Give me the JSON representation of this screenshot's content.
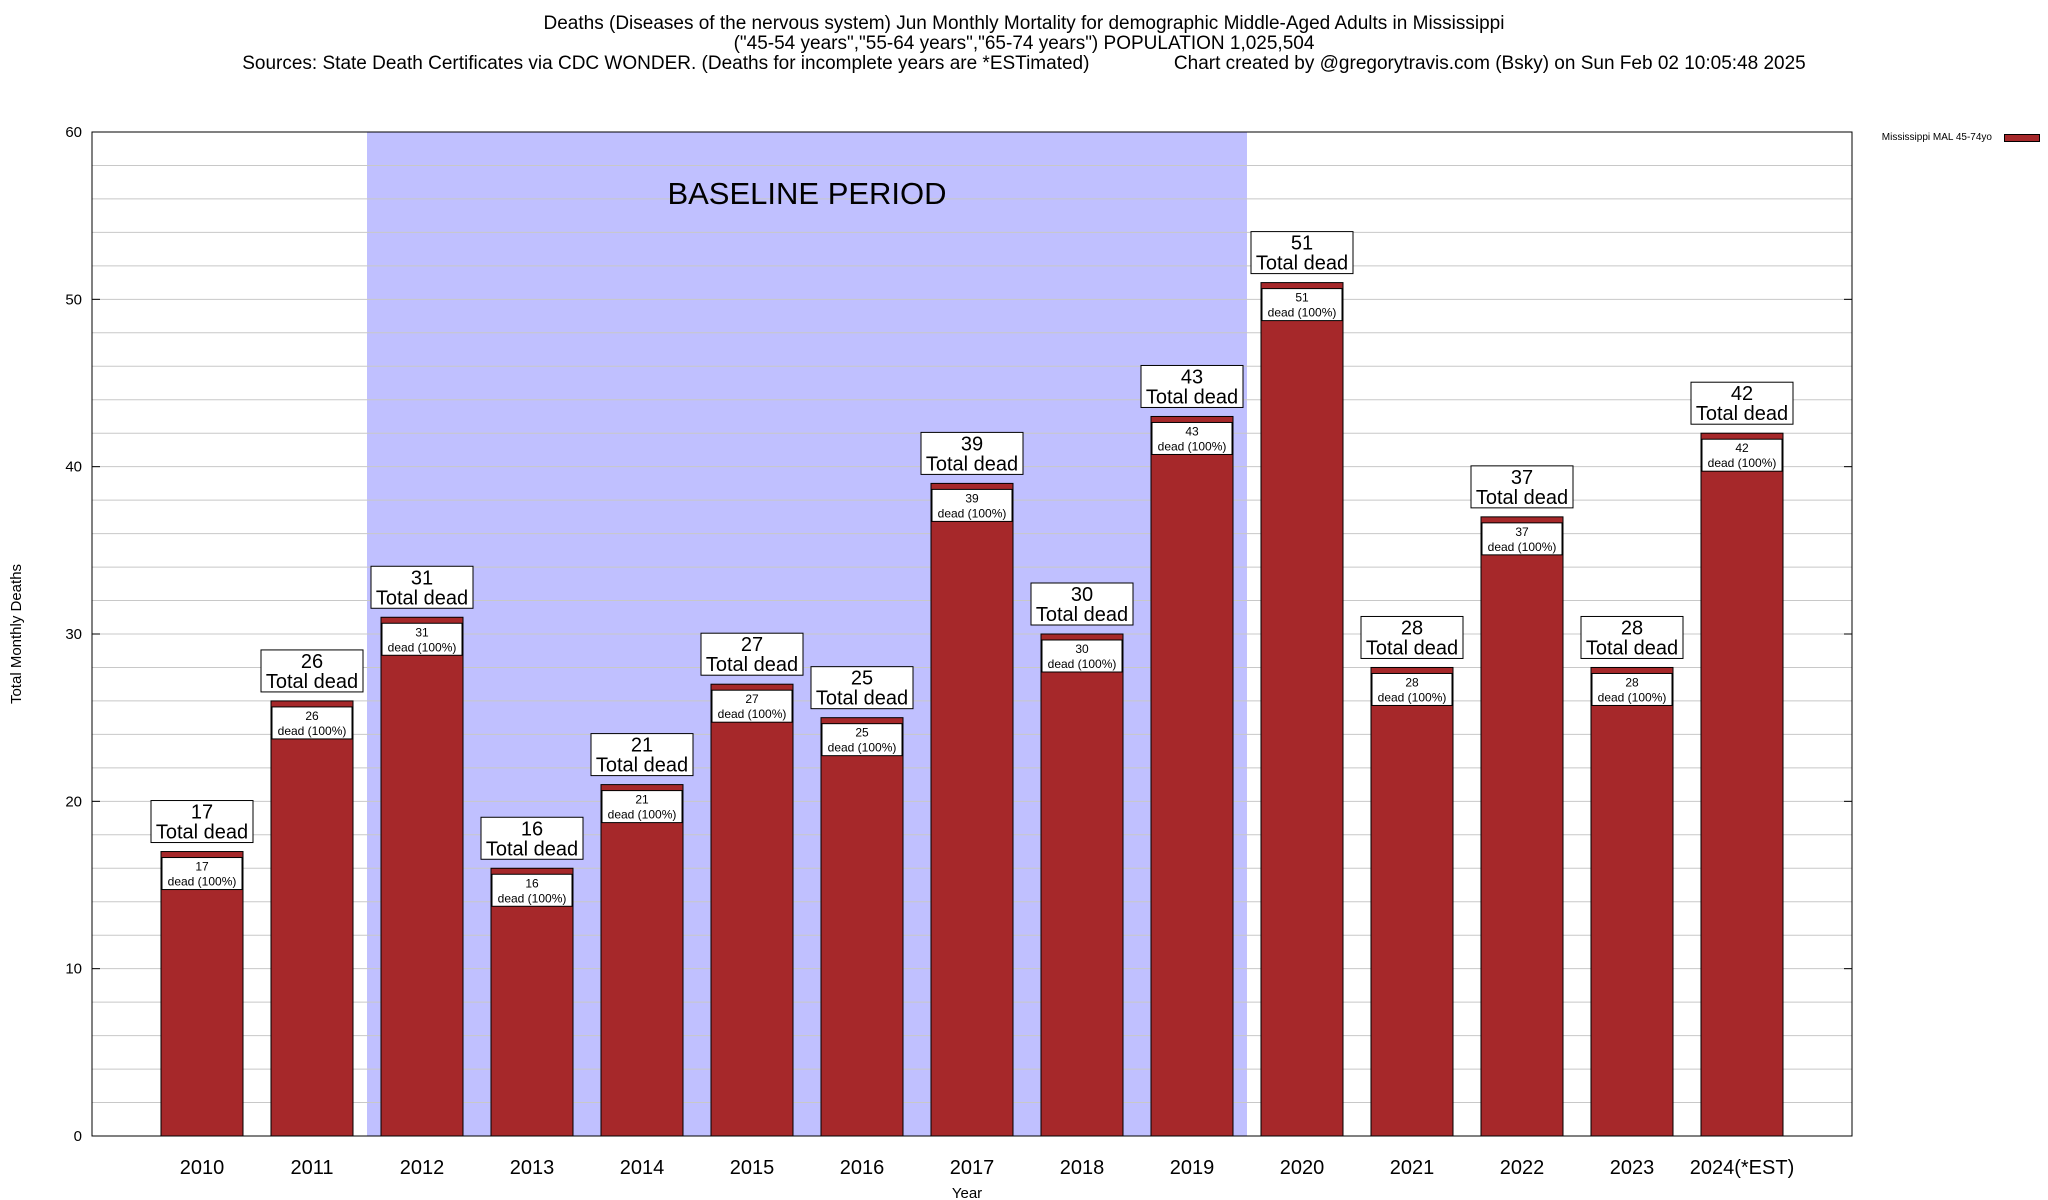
{
  "titles": {
    "line1": "Deaths (Diseases of the nervous system) Jun Monthly Mortality for demographic Middle-Aged Adults in Mississippi",
    "line2": "(\"45-54 years\",\"55-64 years\",\"65-74 years\") POPULATION 1,025,504",
    "line3_left": "Sources: State Death Certificates via CDC WONDER. (Deaths for incomplete years are *ESTimated)",
    "line3_right": "Chart created by @gregorytravis.com (Bsky) on Sun Feb 02 10:05:48 2025"
  },
  "legend": {
    "label": "Mississippi MAL 45-74yo"
  },
  "colors": {
    "bar": "#a6282a",
    "baseline": "#c0c0ff",
    "grid": "#c8c8c8"
  },
  "chart_data": {
    "type": "bar",
    "xlabel": "Year",
    "ylabel": "Total Monthly Deaths",
    "ylim": [
      0,
      60
    ],
    "yticks": [
      0,
      10,
      20,
      30,
      40,
      50,
      60
    ],
    "grid": true,
    "legend_position": "top-right",
    "categories": [
      "2010",
      "2011",
      "2012",
      "2013",
      "2014",
      "2015",
      "2016",
      "2017",
      "2018",
      "2019",
      "2020",
      "2021",
      "2022",
      "2023",
      "2024(*EST)"
    ],
    "series": [
      {
        "name": "Mississippi MAL 45-74yo",
        "values": [
          17,
          26,
          31,
          16,
          21,
          27,
          25,
          39,
          30,
          43,
          51,
          28,
          37,
          28,
          42
        ]
      }
    ],
    "total_label_suffix": "Total dead",
    "inner_label_suffix": "dead (100%)",
    "annotation": {
      "text": "BASELINE PERIOD",
      "from": "2012",
      "to": "2019"
    }
  }
}
